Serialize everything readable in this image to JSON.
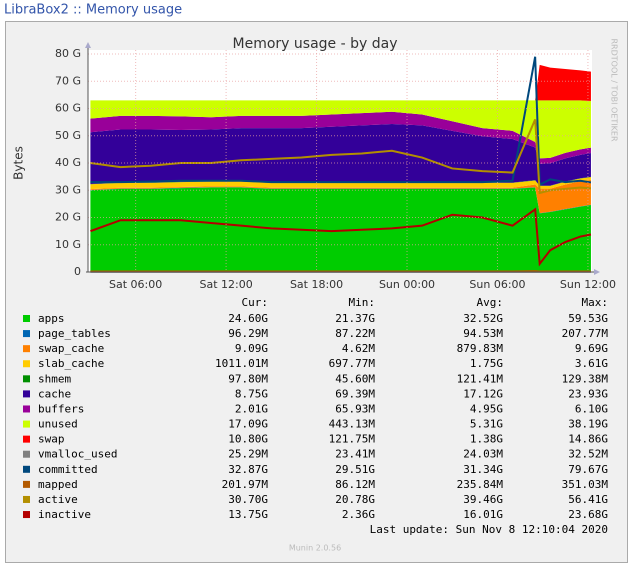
{
  "header": {
    "title": "LibraBox2 :: Memory usage"
  },
  "chart_data": {
    "type": "stacked-area",
    "title": "Memory usage - by day",
    "y_label": "Bytes",
    "side_label": "RRDTOOL / TOBI OETIKER",
    "x": [
      3,
      5,
      7,
      9,
      11,
      13,
      15,
      17,
      19,
      21,
      23,
      25,
      27,
      29,
      31,
      32.5,
      32.8,
      33.5,
      34.5,
      35.5,
      36.2
    ],
    "xlim": [
      2.84,
      36.27
    ],
    "xticks": [
      {
        "value": 6,
        "label": "Sat 06:00"
      },
      {
        "value": 12,
        "label": "Sat 12:00"
      },
      {
        "value": 18,
        "label": "Sat 18:00"
      },
      {
        "value": 24,
        "label": "Sun 00:00"
      },
      {
        "value": 30,
        "label": "Sun 06:00"
      },
      {
        "value": 36,
        "label": "Sun 12:00"
      }
    ],
    "ylim": [
      0,
      80
    ],
    "yticks": [
      {
        "value": 0,
        "label": "0"
      },
      {
        "value": 10,
        "label": "10 G"
      },
      {
        "value": 20,
        "label": "20 G"
      },
      {
        "value": 30,
        "label": "30 G"
      },
      {
        "value": 40,
        "label": "40 G"
      },
      {
        "value": 50,
        "label": "50 G"
      },
      {
        "value": 60,
        "label": "60 G"
      },
      {
        "value": 70,
        "label": "70 G"
      },
      {
        "value": 80,
        "label": "80 G"
      }
    ],
    "grid": true,
    "legend_columns": [
      "Cur:",
      "Min:",
      "Avg:",
      "Max:"
    ],
    "series": [
      {
        "name": "apps",
        "color": "#00cc00",
        "kind": "area",
        "values": [
          30,
          30.5,
          30.5,
          30.8,
          31,
          31,
          30.5,
          30.5,
          30.5,
          30.5,
          30.5,
          30.5,
          30.5,
          30.5,
          30.5,
          31,
          21.5,
          22,
          23,
          24,
          24.6
        ],
        "stats": [
          "24.60G",
          "21.37G",
          "32.52G",
          "59.53G"
        ]
      },
      {
        "name": "page_tables",
        "color": "#0066b3",
        "kind": "area",
        "values": [
          0.1,
          0.1,
          0.1,
          0.1,
          0.1,
          0.1,
          0.1,
          0.1,
          0.1,
          0.1,
          0.1,
          0.1,
          0.1,
          0.1,
          0.1,
          0.1,
          0.1,
          0.1,
          0.1,
          0.1,
          0.1
        ],
        "stats": [
          "96.29M",
          "87.22M",
          "94.53M",
          "207.77M"
        ]
      },
      {
        "name": "swap_cache",
        "color": "#ff8000",
        "kind": "area",
        "values": [
          0.3,
          0.3,
          0.3,
          0.3,
          0.3,
          0.3,
          0.3,
          0.3,
          0.3,
          0.3,
          0.3,
          0.3,
          0.3,
          0.3,
          0.3,
          1,
          9,
          8.5,
          9,
          9.2,
          9.09
        ],
        "stats": [
          "9.09G",
          "4.62M",
          "879.83M",
          "9.69G"
        ]
      },
      {
        "name": "slab_cache",
        "color": "#ffcc00",
        "kind": "area",
        "values": [
          1.8,
          1.8,
          1.8,
          1.8,
          1.8,
          1.8,
          1.8,
          1.8,
          1.8,
          1.8,
          1.8,
          1.8,
          1.8,
          1.8,
          1.8,
          1.5,
          1,
          1,
          1,
          1,
          1.01
        ],
        "stats": [
          "1011.01M",
          "697.77M",
          "1.75G",
          "3.61G"
        ]
      },
      {
        "name": "shmem",
        "color": "#008f00",
        "kind": "area",
        "values": [
          0.1,
          0.1,
          0.1,
          0.1,
          0.1,
          0.1,
          0.1,
          0.1,
          0.1,
          0.1,
          0.1,
          0.1,
          0.1,
          0.1,
          0.1,
          0.1,
          0.1,
          0.1,
          0.1,
          0.1,
          0.1
        ],
        "stats": [
          "97.80M",
          "45.60M",
          "121.41M",
          "129.38M"
        ]
      },
      {
        "name": "cache",
        "color": "#330099",
        "kind": "area",
        "values": [
          19,
          19.5,
          19.5,
          19,
          19,
          19.5,
          20,
          20,
          20.5,
          21,
          21.5,
          21,
          19,
          17,
          16,
          12,
          8,
          8.2,
          8.5,
          8.6,
          8.75
        ],
        "stats": [
          "8.75G",
          "69.39M",
          "17.12G",
          "23.93G"
        ]
      },
      {
        "name": "buffers",
        "color": "#990099",
        "kind": "area",
        "values": [
          5,
          5,
          5,
          5,
          4.5,
          4.5,
          4.5,
          4.5,
          4.5,
          4.5,
          4.5,
          4,
          3.5,
          3,
          3,
          2,
          2,
          2,
          2,
          2,
          2.01
        ],
        "stats": [
          "2.01G",
          "65.93M",
          "4.95G",
          "6.10G"
        ]
      },
      {
        "name": "unused",
        "color": "#ccff00",
        "kind": "area",
        "values": [
          6.7,
          5.7,
          5.7,
          5.9,
          6.2,
          5.7,
          5.7,
          5.7,
          5.2,
          4.7,
          4.2,
          5.2,
          7.7,
          10.2,
          11.2,
          15.3,
          21.3,
          21.1,
          19.3,
          18,
          17.09
        ],
        "stats": [
          "17.09G",
          "443.13M",
          "5.31G",
          "38.19G"
        ]
      },
      {
        "name": "swap",
        "color": "#ff0000",
        "kind": "area",
        "values": [
          0,
          0,
          0,
          0,
          0,
          0,
          0,
          0,
          0,
          0,
          0,
          0,
          0,
          0,
          0,
          0,
          13,
          12,
          11.5,
          11,
          10.8
        ],
        "stats": [
          "10.80G",
          "121.75M",
          "1.38G",
          "14.86G"
        ]
      },
      {
        "name": "vmalloc_used",
        "color": "#808080",
        "kind": "line",
        "values": [
          0.03,
          0.03,
          0.03,
          0.03,
          0.03,
          0.03,
          0.03,
          0.03,
          0.03,
          0.03,
          0.03,
          0.03,
          0.03,
          0.03,
          0.03,
          0.03,
          0.03,
          0.03,
          0.03,
          0.03,
          0.03
        ],
        "stats": [
          "25.29M",
          "23.41M",
          "24.03M",
          "32.52M"
        ]
      },
      {
        "name": "committed",
        "color": "#00487d",
        "kind": "line",
        "values": [
          33,
          33,
          33.2,
          33.5,
          33.5,
          33.5,
          33,
          33,
          33,
          33,
          33,
          33,
          33,
          33,
          33.5,
          79,
          32,
          34,
          33,
          33.5,
          32.87
        ],
        "stats": [
          "32.87G",
          "29.51G",
          "31.34G",
          "79.67G"
        ]
      },
      {
        "name": "mapped",
        "color": "#b35a00",
        "kind": "line",
        "values": [
          0.2,
          0.2,
          0.2,
          0.2,
          0.2,
          0.2,
          0.2,
          0.2,
          0.2,
          0.2,
          0.2,
          0.2,
          0.2,
          0.2,
          0.2,
          0.3,
          0.2,
          0.2,
          0.2,
          0.2,
          0.2
        ],
        "stats": [
          "201.97M",
          "86.12M",
          "235.84M",
          "351.03M"
        ]
      },
      {
        "name": "active",
        "color": "#b38f00",
        "kind": "line",
        "values": [
          40,
          38.5,
          39,
          40,
          40,
          41,
          41.5,
          42,
          43,
          43.5,
          44.5,
          42,
          38,
          37,
          36.5,
          56,
          29,
          30,
          30.5,
          31,
          30.7
        ],
        "stats": [
          "30.70G",
          "20.78G",
          "39.46G",
          "56.41G"
        ]
      },
      {
        "name": "inactive",
        "color": "#b30000",
        "kind": "line",
        "values": [
          15,
          19,
          19,
          19,
          18,
          17,
          16,
          15.5,
          15,
          15.5,
          16,
          17,
          21,
          20,
          17,
          23,
          3,
          8,
          11,
          13,
          13.75
        ],
        "stats": [
          "13.75G",
          "2.36G",
          "16.01G",
          "23.68G"
        ]
      }
    ],
    "last_update": "Last update:  Sun Nov  8 12:10:04 2020",
    "footer": "Munin 2.0.56"
  }
}
